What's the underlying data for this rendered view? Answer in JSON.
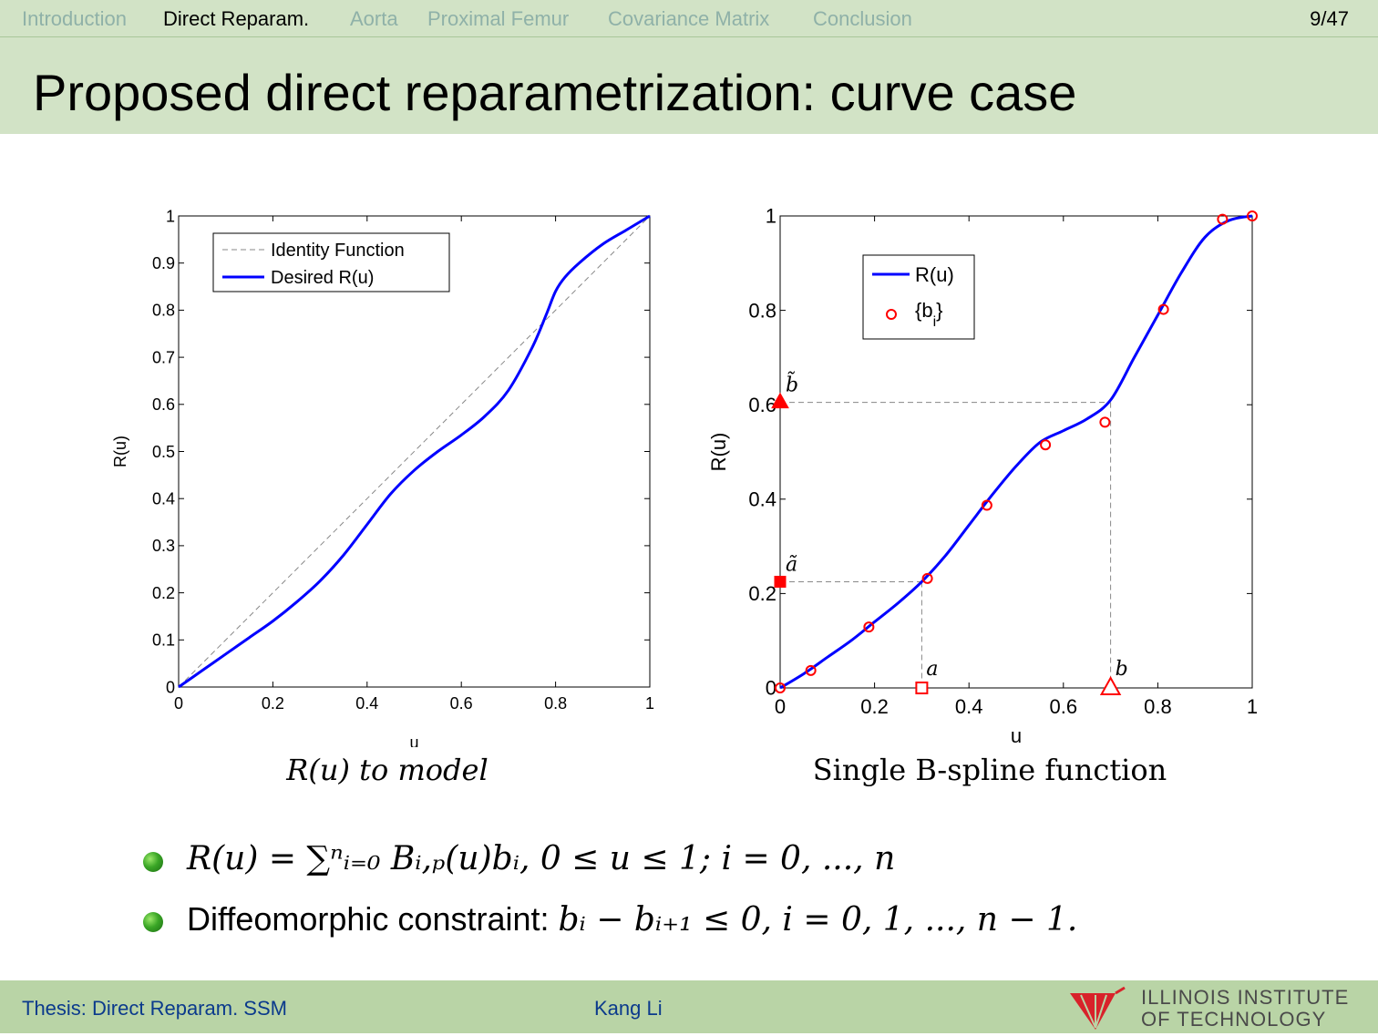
{
  "nav": {
    "items": [
      "Introduction",
      "Direct Reparam.",
      "Aorta",
      "Proximal Femur",
      "Covariance Matrix",
      "Conclusion"
    ],
    "active_index": 1,
    "page": "9/47"
  },
  "title": "Proposed direct reparametrization: curve case",
  "chart_data": [
    {
      "type": "line",
      "xlabel": "u",
      "ylabel": "R(u)",
      "xlim": [
        0,
        1
      ],
      "ylim": [
        0,
        1
      ],
      "xticks": [
        "0",
        "0.2",
        "0.4",
        "0.6",
        "0.8",
        "1"
      ],
      "yticks": [
        "0",
        "0.1",
        "0.2",
        "0.3",
        "0.4",
        "0.5",
        "0.6",
        "0.7",
        "0.8",
        "0.9",
        "1"
      ],
      "legend_position": "top-left",
      "series": [
        {
          "name": "Identity Function",
          "style": "dashed",
          "color": "#888888",
          "x": [
            0,
            1
          ],
          "y": [
            0,
            1
          ]
        },
        {
          "name": "Desired R(u)",
          "style": "solid",
          "color": "#0000ff",
          "x": [
            0,
            0.05,
            0.1,
            0.15,
            0.2,
            0.25,
            0.3,
            0.35,
            0.4,
            0.45,
            0.5,
            0.55,
            0.6,
            0.65,
            0.7,
            0.75,
            0.78,
            0.8,
            0.82,
            0.85,
            0.9,
            0.95,
            1.0
          ],
          "y": [
            0,
            0.035,
            0.07,
            0.105,
            0.14,
            0.18,
            0.225,
            0.28,
            0.345,
            0.41,
            0.46,
            0.5,
            0.535,
            0.575,
            0.63,
            0.72,
            0.79,
            0.84,
            0.87,
            0.9,
            0.94,
            0.97,
            1.0
          ]
        }
      ],
      "caption": "R(u) to model"
    },
    {
      "type": "line",
      "xlabel": "u",
      "ylabel": "R(u)",
      "xlim": [
        0,
        1
      ],
      "ylim": [
        0,
        1
      ],
      "xticks": [
        "0",
        "0.2",
        "0.4",
        "0.6",
        "0.8",
        "1"
      ],
      "yticks": [
        "0",
        "0.2",
        "0.4",
        "0.6",
        "0.8",
        "1"
      ],
      "legend_position": "top-left",
      "series": [
        {
          "name": "R(u)",
          "style": "solid",
          "color": "#0000ff",
          "x": [
            0,
            0.05,
            0.1,
            0.15,
            0.2,
            0.25,
            0.3,
            0.35,
            0.4,
            0.45,
            0.5,
            0.55,
            0.6,
            0.65,
            0.7,
            0.75,
            0.8,
            0.85,
            0.9,
            0.95,
            1.0
          ],
          "y": [
            0,
            0.03,
            0.065,
            0.1,
            0.14,
            0.18,
            0.225,
            0.28,
            0.345,
            0.41,
            0.47,
            0.52,
            0.545,
            0.57,
            0.61,
            0.7,
            0.79,
            0.88,
            0.955,
            0.99,
            1.0
          ]
        },
        {
          "name": "{b_i}",
          "style": "markers",
          "color": "#ff0000",
          "x": [
            0,
            0.065,
            0.188,
            0.312,
            0.438,
            0.562,
            0.688,
            0.812,
            0.937,
            1.0
          ],
          "y": [
            0,
            0.037,
            0.129,
            0.232,
            0.387,
            0.515,
            0.563,
            0.802,
            0.993,
            1.0
          ]
        }
      ],
      "legend_labels": {
        "curve": "R(u)",
        "points_main": "{b",
        "points_sub": "i",
        "points_close": "}"
      },
      "annotations": {
        "a": {
          "u": 0.3,
          "r": 0.225,
          "label": "a",
          "tilde_label": "ã"
        },
        "b": {
          "u": 0.7,
          "r": 0.605,
          "label": "b",
          "tilde_label": "b̃"
        }
      },
      "caption": "Single B-spline function"
    }
  ],
  "bullets": [
    {
      "formula": "R(u) = ∑ⁿᵢ₌₀ Bᵢ,ₚ(u)bᵢ,      0 ≤ u ≤ 1;  i = 0, ..., n"
    },
    {
      "text": "Diffeomorphic constraint: ",
      "formula": "bᵢ − bᵢ₊₁ ≤ 0,      i = 0, 1, ..., n − 1."
    }
  ],
  "footer": {
    "left": "Thesis: Direct Reparam. SSM",
    "center": "Kang Li",
    "logo_line1": "ILLINOIS INSTITUTE",
    "logo_line2": "OF TECHNOLOGY"
  },
  "colors": {
    "header_bg": "#d2e3c6",
    "footer_bg": "#b9d4a6",
    "curve": "#0000ff",
    "points": "#ff0000",
    "nav_inactive": "#8fb1a8"
  }
}
